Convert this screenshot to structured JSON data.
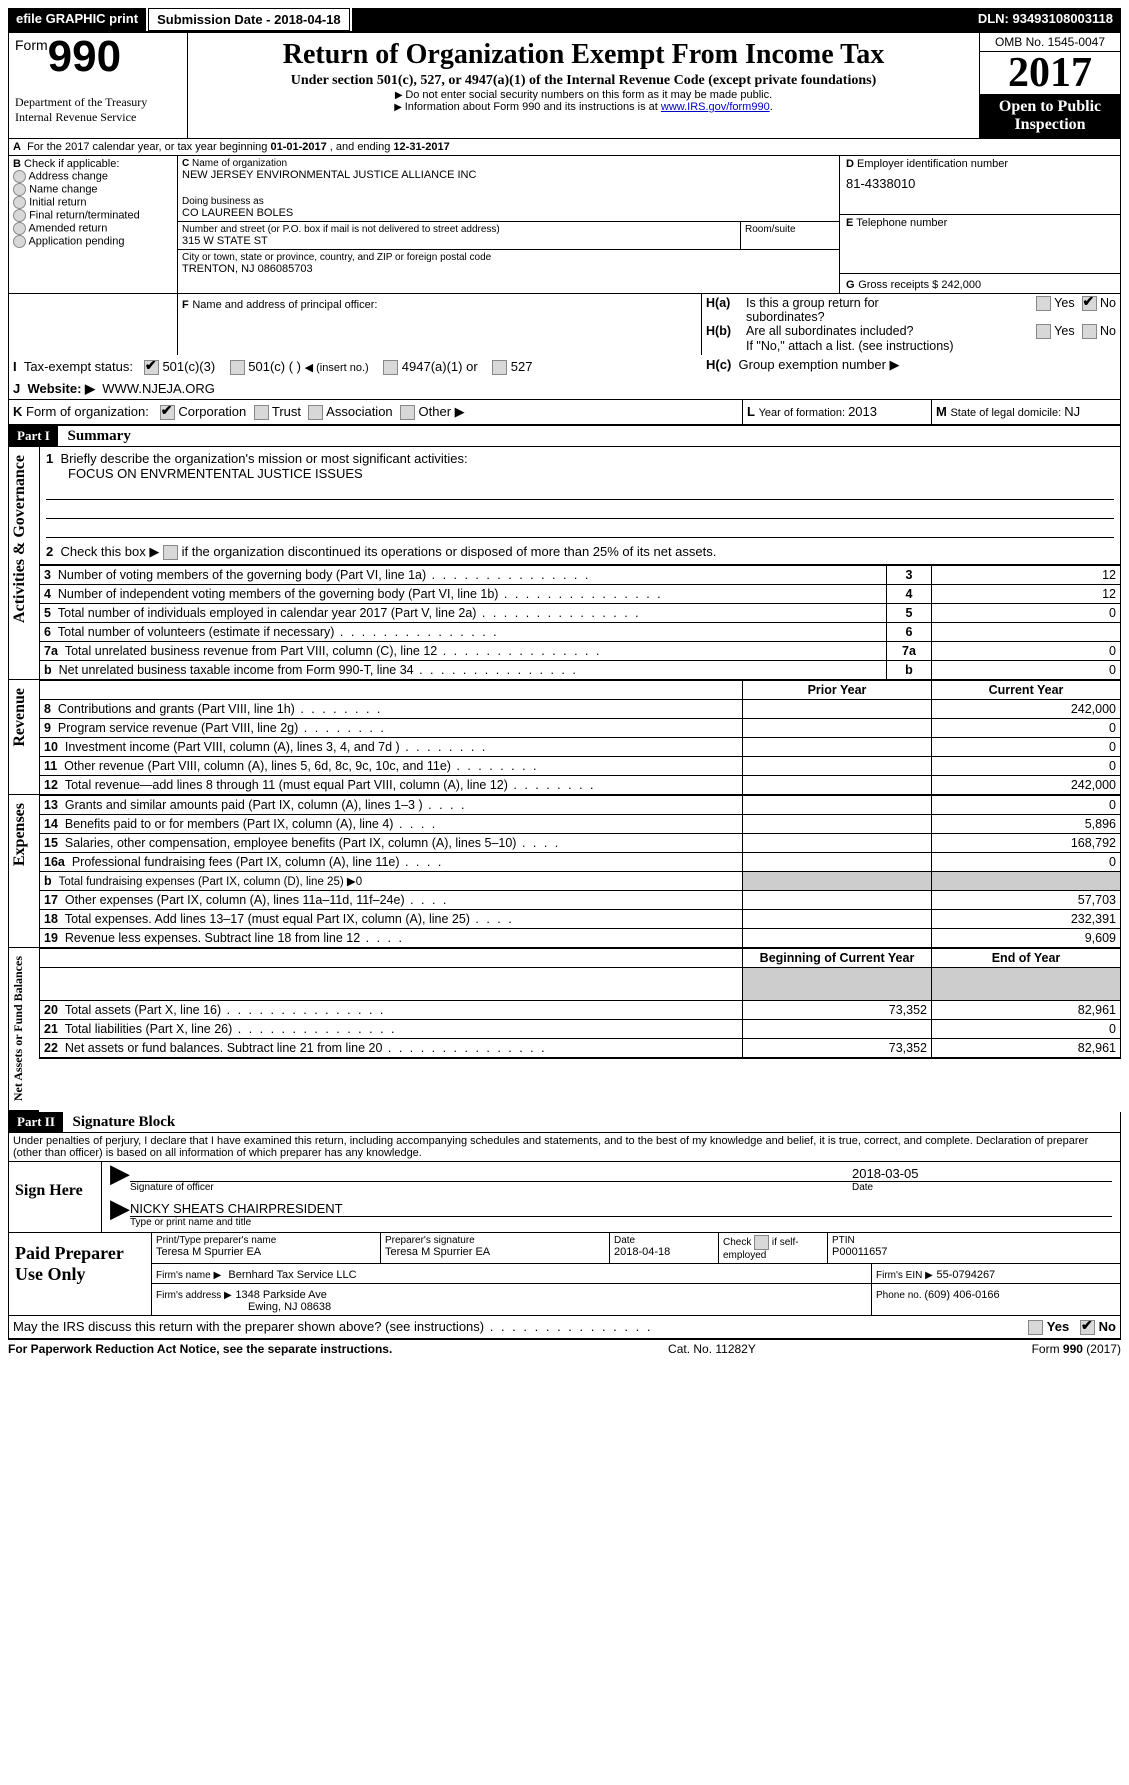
{
  "topbar": {
    "efile": "efile GRAPHIC print",
    "submission_label": "Submission Date - ",
    "submission_date": "2018-04-18",
    "dln_label": "DLN: ",
    "dln": "93493108003118"
  },
  "header": {
    "form_word": "Form",
    "form_no": "990",
    "dept1": "Department of the Treasury",
    "dept2": "Internal Revenue Service",
    "title": "Return of Organization Exempt From Income Tax",
    "subtitle": "Under section 501(c), 527, or 4947(a)(1) of the Internal Revenue Code (except private foundations)",
    "note1": "Do not enter social security numbers on this form as it may be made public.",
    "note2_pre": "Information about Form 990 and its instructions is at ",
    "note2_link": "www.IRS.gov/form990",
    "omb": "OMB No. 1545-0047",
    "year": "2017",
    "inspect1": "Open to Public",
    "inspect2": "Inspection"
  },
  "A": {
    "label": "A",
    "text_pre": "For the 2017 calendar year, or tax year beginning ",
    "begin": "01-01-2017",
    "mid": " , and ending ",
    "end": "12-31-2017"
  },
  "B": {
    "label": "B",
    "check": "Check if applicable:",
    "items": [
      "Address change",
      "Name change",
      "Initial return",
      "Final return/terminated",
      "Amended return",
      "Application pending"
    ]
  },
  "C": {
    "label": "C",
    "nameorg_label": "Name of organization",
    "nameorg": "NEW JERSEY ENVIRONMENTAL JUSTICE ALLIANCE INC",
    "dba_label": "Doing business as",
    "dba": "CO LAUREEN BOLES",
    "street_label": "Number and street (or P.O. box if mail is not delivered to street address)",
    "room_label": "Room/suite",
    "street": "315 W STATE ST",
    "city_label": "City or town, state or province, country, and ZIP or foreign postal code",
    "city": "TRENTON, NJ  086085703"
  },
  "D": {
    "label": "D",
    "title": "Employer identification number",
    "value": "81-4338010"
  },
  "E": {
    "label": "E",
    "title": "Telephone number",
    "value": ""
  },
  "G": {
    "label": "G",
    "title": "Gross receipts $ ",
    "value": "242,000"
  },
  "F": {
    "label": "F",
    "title": "Name and address of principal officer:"
  },
  "H": {
    "a_label": "H(a)",
    "a_text": "Is this a group return for",
    "a_text2": "subordinates?",
    "b_label": "H(b)",
    "b_text": "Are all subordinates included?",
    "b_note": "If \"No,\" attach a list. (see instructions)",
    "c_label": "H(c)",
    "c_text": "Group exemption number ▶",
    "yes": "Yes",
    "no": "No"
  },
  "I": {
    "label": "I",
    "title": "Tax-exempt status:",
    "opt1": "501(c)(3)",
    "opt2": "501(c) (  )",
    "opt2b": "◀ (insert no.)",
    "opt3": "4947(a)(1) or",
    "opt4": "527"
  },
  "J": {
    "label": "J",
    "title": "Website: ▶",
    "value": "WWW.NJEJA.ORG"
  },
  "K": {
    "label": "K",
    "title": "Form of organization:",
    "opts": [
      "Corporation",
      "Trust",
      "Association",
      "Other ▶"
    ]
  },
  "L": {
    "label": "L",
    "title": "Year of formation: ",
    "value": "2013"
  },
  "M": {
    "label": "M",
    "title": "State of legal domicile: ",
    "value": "NJ"
  },
  "part1": {
    "bar": "Part I",
    "title": "Summary",
    "sidelabels": {
      "a": "Activities & Governance",
      "r": "Revenue",
      "e": "Expenses",
      "n": "Net Assets or Fund Balances"
    },
    "l1": "Briefly describe the organization's mission or most significant activities:",
    "l1v": "FOCUS ON ENVRMENTENTAL JUSTICE ISSUES",
    "l2": "Check this box ▶",
    "l2b": "if the organization discontinued its operations or disposed of more than 25% of its net assets.",
    "rows_a": [
      {
        "n": "3",
        "t": "Number of voting members of the governing body (Part VI, line 1a)",
        "v": "12"
      },
      {
        "n": "4",
        "t": "Number of independent voting members of the governing body (Part VI, line 1b)",
        "v": "12"
      },
      {
        "n": "5",
        "t": "Total number of individuals employed in calendar year 2017 (Part V, line 2a)",
        "v": "0"
      },
      {
        "n": "6",
        "t": "Total number of volunteers (estimate if necessary)",
        "v": ""
      },
      {
        "n": "7a",
        "t": "Total unrelated business revenue from Part VIII, column (C), line 12",
        "v": "0"
      },
      {
        "n": "b",
        "t": "Net unrelated business taxable income from Form 990-T, line 34",
        "v": "0"
      }
    ],
    "prior": "Prior Year",
    "current": "Current Year",
    "rows_r": [
      {
        "n": "8",
        "t": "Contributions and grants (Part VIII, line 1h)",
        "p": "",
        "c": "242,000"
      },
      {
        "n": "9",
        "t": "Program service revenue (Part VIII, line 2g)",
        "p": "",
        "c": "0"
      },
      {
        "n": "10",
        "t": "Investment income (Part VIII, column (A), lines 3, 4, and 7d )",
        "p": "",
        "c": "0"
      },
      {
        "n": "11",
        "t": "Other revenue (Part VIII, column (A), lines 5, 6d, 8c, 9c, 10c, and 11e)",
        "p": "",
        "c": "0"
      },
      {
        "n": "12",
        "t": "Total revenue—add lines 8 through 11 (must equal Part VIII, column (A), line 12)",
        "p": "",
        "c": "242,000"
      }
    ],
    "rows_e": [
      {
        "n": "13",
        "t": "Grants and similar amounts paid (Part IX, column (A), lines 1–3 )",
        "p": "",
        "c": "0"
      },
      {
        "n": "14",
        "t": "Benefits paid to or for members (Part IX, column (A), line 4)",
        "p": "",
        "c": "5,896"
      },
      {
        "n": "15",
        "t": "Salaries, other compensation, employee benefits (Part IX, column (A), lines 5–10)",
        "p": "",
        "c": "168,792"
      },
      {
        "n": "16a",
        "t": "Professional fundraising fees (Part IX, column (A), line 11e)",
        "p": "",
        "c": "0"
      },
      {
        "n": "b",
        "t": "Total fundraising expenses (Part IX, column (D), line 25) ▶0",
        "p": "shade",
        "c": "shade"
      },
      {
        "n": "17",
        "t": "Other expenses (Part IX, column (A), lines 11a–11d, 11f–24e)",
        "p": "",
        "c": "57,703"
      },
      {
        "n": "18",
        "t": "Total expenses. Add lines 13–17 (must equal Part IX, column (A), line 25)",
        "p": "",
        "c": "232,391"
      },
      {
        "n": "19",
        "t": "Revenue less expenses. Subtract line 18 from line 12",
        "p": "",
        "c": "9,609"
      }
    ],
    "begin": "Beginning of Current Year",
    "end": "End of Year",
    "rows_n": [
      {
        "n": "20",
        "t": "Total assets (Part X, line 16)",
        "p": "73,352",
        "c": "82,961"
      },
      {
        "n": "21",
        "t": "Total liabilities (Part X, line 26)",
        "p": "",
        "c": "0"
      },
      {
        "n": "22",
        "t": "Net assets or fund balances. Subtract line 21 from line 20",
        "p": "73,352",
        "c": "82,961"
      }
    ]
  },
  "part2": {
    "bar": "Part II",
    "title": "Signature Block",
    "perjury": "Under penalties of perjury, I declare that I have examined this return, including accompanying schedules and statements, and to the best of my knowledge and belief, it is true, correct, and complete. Declaration of preparer (other than officer) is based on all information of which preparer has any knowledge.",
    "sign": "Sign Here",
    "sig_label": "Signature of officer",
    "date_label": "Date",
    "sig_date": "2018-03-05",
    "name": "NICKY SHEATS CHAIRPRESIDENT",
    "name_label": "Type or print name and title",
    "paid": "Paid Preparer Use Only",
    "pname_l": "Print/Type preparer's name",
    "pname": "Teresa M Spurrier EA",
    "psig_l": "Preparer's signature",
    "psig": "Teresa M Spurrier EA",
    "pdate_l": "Date",
    "pdate": "2018-04-18",
    "pchk_l": "Check",
    "pchk_l2": "if self-employed",
    "ptin_l": "PTIN",
    "ptin": "P00011657",
    "firm_l": "Firm's name    ▶",
    "firm": "Bernhard Tax Service LLC",
    "fein_l": "Firm's EIN ▶",
    "fein": "55-0794267",
    "addr_l": "Firm's address ▶",
    "addr1": "1348 Parkside Ave",
    "addr2": "Ewing, NJ  08638",
    "phone_l": "Phone no. ",
    "phone": "(609) 406-0166",
    "discuss": "May the IRS discuss this return with the preparer shown above? (see instructions)"
  },
  "footer": {
    "left": "For Paperwork Reduction Act Notice, see the separate instructions.",
    "mid": "Cat. No. 11282Y",
    "right_pre": "Form ",
    "right_b": "990",
    "right_post": " (2017)"
  }
}
